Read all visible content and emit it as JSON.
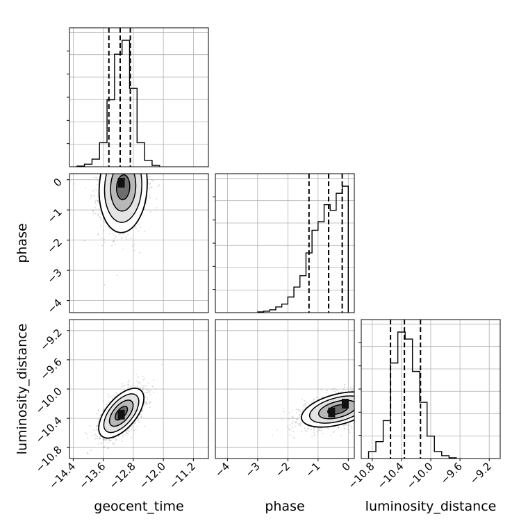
{
  "chart_data": {
    "type": "corner",
    "parameters": [
      "geocent_time",
      "phase",
      "luminosity_distance"
    ],
    "grid": true,
    "colors": {
      "line": "#000000",
      "grid": "#b0b0b0",
      "point": "#808080"
    },
    "quantile_levels": [
      0.16,
      0.5,
      0.84
    ],
    "ranges": {
      "geocent_time": [
        -14.5,
        -10.8
      ],
      "phase": [
        -4.4,
        0.2
      ],
      "luminosity_distance": [
        -10.95,
        -9.05
      ]
    },
    "ticks": {
      "geocent_time": [
        "−14.4",
        "−13.6",
        "−12.8",
        "−12.0",
        "−11.2"
      ],
      "phase": [
        "−4",
        "−3",
        "−2",
        "−1",
        "0"
      ],
      "luminosity_distance": [
        "−10.8",
        "−10.4",
        "−10.0",
        "−9.6",
        "−9.2"
      ]
    },
    "tick_values": {
      "geocent_time": [
        -14.4,
        -13.6,
        -12.8,
        -12.0,
        -11.2
      ],
      "phase": [
        -4,
        -3,
        -2,
        -1,
        0
      ],
      "luminosity_distance": [
        -10.8,
        -10.4,
        -10.0,
        -9.6,
        -9.2
      ]
    },
    "marginals": {
      "geocent_time": {
        "edges": [
          -14.3,
          -14.1,
          -13.9,
          -13.7,
          -13.5,
          -13.3,
          -13.1,
          -12.9,
          -12.7,
          -12.5,
          -12.3,
          -12.1
        ],
        "counts": [
          0.5,
          2,
          6,
          19,
          53,
          89,
          100,
          62,
          19,
          5,
          1
        ],
        "quantiles": [
          -13.45,
          -13.15,
          -12.88
        ]
      },
      "phase": {
        "edges": [
          -3.0,
          -2.8,
          -2.6,
          -2.4,
          -2.2,
          -2.0,
          -1.8,
          -1.6,
          -1.4,
          -1.2,
          -1.0,
          -0.8,
          -0.6,
          -0.4,
          -0.2,
          0.0
        ],
        "counts": [
          0.5,
          1,
          2,
          4,
          6,
          11,
          18,
          26,
          42,
          58,
          64,
          76,
          72,
          84,
          89
        ],
        "quantiles": [
          -1.3,
          -0.65,
          -0.2
        ]
      },
      "luminosity_distance": {
        "edges": [
          -10.85,
          -10.75,
          -10.65,
          -10.55,
          -10.45,
          -10.35,
          -10.25,
          -10.15,
          -10.05,
          -9.95,
          -9.85,
          -9.75,
          -9.65
        ],
        "counts": [
          5,
          12,
          27,
          68,
          90,
          85,
          62,
          40,
          16,
          5,
          2,
          0.5
        ],
        "quantiles": [
          -10.55,
          -10.36,
          -10.14
        ]
      }
    },
    "joint": [
      {
        "x": "geocent_time",
        "y": "phase",
        "center": [
          -13.07,
          -0.25
        ],
        "sigma": [
          0.32,
          0.75
        ],
        "corr": 0.08,
        "peak_cells": [
          [
            -13.12,
            -0.1
          ]
        ]
      },
      {
        "x": "geocent_time",
        "y": "luminosity_distance",
        "center": [
          -13.12,
          -10.33
        ],
        "sigma": [
          0.3,
          0.17
        ],
        "corr": 0.6,
        "peak_cells": [
          [
            -13.12,
            -10.35
          ]
        ]
      },
      {
        "x": "phase",
        "y": "luminosity_distance",
        "center": [
          -0.35,
          -10.28
        ],
        "sigma": [
          0.6,
          0.12
        ],
        "corr": 0.45,
        "peak_cells": [
          [
            -0.1,
            -10.2
          ],
          [
            -0.55,
            -10.32
          ]
        ]
      }
    ]
  }
}
